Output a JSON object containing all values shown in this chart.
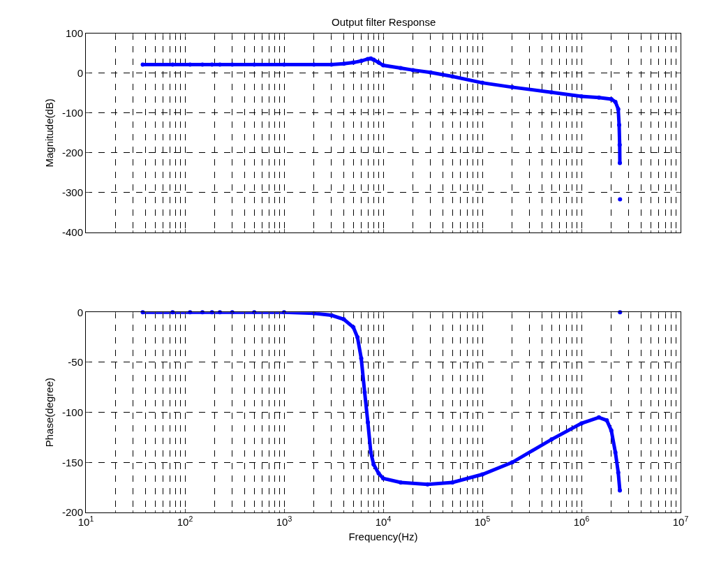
{
  "chart_data": [
    {
      "type": "line",
      "title": "Output filter Response",
      "ylabel": "Magnitude(dB)",
      "log": "x",
      "grid": true,
      "marker": "circle",
      "line_style": "solid",
      "tick_labels": "y",
      "xlim": [
        10,
        10000000
      ],
      "xticks": [
        {
          "value": 10,
          "label": "10$^{1}$"
        },
        {
          "value": 100,
          "label": "10$^{2}$"
        },
        {
          "value": 1000,
          "label": "10$^{3}$"
        },
        {
          "value": 10000,
          "label": "10$^{4}$"
        },
        {
          "value": 100000,
          "label": "10$^{5}$"
        },
        {
          "value": 1000000,
          "label": "10$^{6}$"
        },
        {
          "value": 10000000,
          "label": "10$^{7}$"
        }
      ],
      "ylim": [
        -400,
        100
      ],
      "yticks": [
        -400,
        -300,
        -200,
        -100,
        0,
        100
      ],
      "series": [
        {
          "color": "#0000ff",
          "x": [
            37.5,
            75,
            112.5,
            150,
            187.5,
            225,
            300,
            500,
            1000,
            2000,
            3000,
            4000,
            5000,
            6000,
            7000,
            7500,
            8000,
            9000,
            10000,
            15000,
            20000,
            30000,
            50000,
            100000,
            200000,
            500000,
            1000000,
            1500000,
            2000000,
            2200000,
            2350000,
            2400000,
            2430000,
            2440000,
            2445000,
            2450000
          ],
          "values": [
            22,
            22,
            22,
            22,
            22,
            22,
            22,
            22,
            22,
            22,
            22,
            24,
            27,
            31,
            36,
            37,
            34,
            27,
            20,
            13,
            8,
            2,
            -8,
            -24,
            -35,
            -48,
            -58,
            -61,
            -65,
            -72,
            -90,
            -130,
            -180,
            -226,
            null,
            -317
          ]
        }
      ]
    },
    {
      "type": "line",
      "xlabel": "Frequency(Hz)",
      "ylabel": "Phase(degree)",
      "log": "x",
      "grid": true,
      "marker": "circle",
      "line_style": "solid",
      "xlim": [
        10,
        10000000
      ],
      "xticks": [
        {
          "value": 10,
          "label": "10$^{1}$"
        },
        {
          "value": 100,
          "label": "10$^{2}$"
        },
        {
          "value": 1000,
          "label": "10$^{3}$"
        },
        {
          "value": 10000,
          "label": "10$^{4}$"
        },
        {
          "value": 100000,
          "label": "10$^{5}$"
        },
        {
          "value": 1000000,
          "label": "10$^{6}$"
        },
        {
          "value": 10000000,
          "label": "10$^{7}$"
        }
      ],
      "ylim": [
        -200,
        0
      ],
      "yticks": [
        -200,
        -150,
        -100,
        -50,
        0
      ],
      "series": [
        {
          "color": "#0000ff",
          "x": [
            37.5,
            75,
            112.5,
            150,
            187.5,
            225,
            300,
            500,
            1000,
            2000,
            3000,
            4000,
            5000,
            5500,
            6000,
            6500,
            7000,
            7500,
            8000,
            9000,
            10000,
            15000,
            28000,
            50000,
            100000,
            200000,
            500000,
            1000000,
            1500000,
            1800000,
            2000000,
            2200000,
            2350000,
            2440000,
            2445000,
            2450000
          ],
          "values": [
            0,
            0,
            0,
            0,
            0,
            0,
            0,
            0,
            0,
            -1,
            -3,
            -7,
            -15,
            -25,
            -46,
            -80,
            -110,
            -140,
            -152,
            -161,
            -166,
            -170,
            -172,
            -170,
            -162,
            -150,
            -127,
            -111,
            -105,
            -108,
            -118,
            -140,
            -160,
            -178,
            null,
            0
          ]
        }
      ]
    }
  ]
}
